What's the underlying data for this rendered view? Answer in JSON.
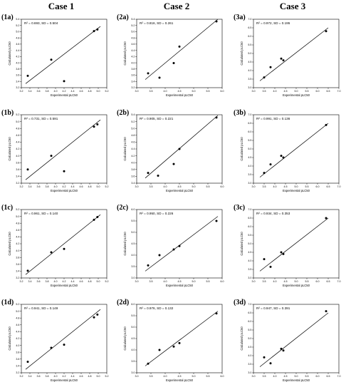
{
  "figure": {
    "case_titles": [
      "Case 1",
      "Case 2",
      "Case 3"
    ],
    "xlabel": "Experimental pLC50",
    "ylabel": "Calculated pLC50"
  },
  "chart_data": [
    {
      "label": "(1a)",
      "type": "scatter",
      "stat": "R² = 0.693, SD = 0.504",
      "xlabel": "Experimental pLC50",
      "ylabel": "Calculated pLC50",
      "xlim": [
        3.2,
        5.2
      ],
      "ylim": [
        3.2,
        5.4
      ],
      "xticks": [
        3.2,
        3.4,
        3.6,
        3.8,
        4.0,
        4.2,
        4.4,
        4.6,
        4.8,
        5.0,
        5.2
      ],
      "yticks": [
        3.2,
        3.4,
        3.6,
        3.8,
        4.0,
        4.2,
        4.4,
        4.6,
        4.8,
        5.0,
        5.2,
        5.4
      ],
      "x": [
        3.35,
        3.9,
        4.2,
        4.9,
        4.98
      ],
      "y": [
        3.58,
        4.1,
        3.41,
        5.02,
        5.07
      ],
      "fit_line": {
        "x": [
          3.3,
          5.05
        ],
        "y": [
          3.33,
          5.17
        ]
      }
    },
    {
      "label": "(2a)",
      "type": "scatter",
      "stat": "R² = 0.816, SD = 0.261",
      "xlabel": "Experimental pLC50",
      "ylabel": "Calculated pLC50",
      "xlim": [
        3.0,
        6.0
      ],
      "ylim": [
        3.2,
        5.4
      ],
      "xticks": [
        3.0,
        3.5,
        4.0,
        4.5,
        5.0,
        5.5,
        6.0
      ],
      "yticks": [
        3.2,
        3.4,
        3.6,
        3.8,
        4.0,
        4.2,
        4.4,
        4.6,
        4.8,
        5.0,
        5.2,
        5.4
      ],
      "x": [
        3.4,
        3.8,
        4.3,
        4.5,
        5.8
      ],
      "y": [
        3.66,
        3.52,
        3.99,
        4.52,
        5.33
      ],
      "fit_line": {
        "x": [
          3.3,
          5.85
        ],
        "y": [
          3.46,
          5.4
        ]
      }
    },
    {
      "label": "(3a)",
      "type": "scatter",
      "stat": "R² = 0.972, SD = 0.195",
      "xlabel": "Experimental pLC50",
      "ylabel": "Calculated pLC50",
      "xlim": [
        3.0,
        7.0
      ],
      "ylim": [
        3.0,
        7.0
      ],
      "xticks": [
        3.0,
        3.5,
        4.0,
        4.5,
        5.0,
        5.5,
        6.0,
        6.5,
        7.0
      ],
      "yticks": [
        3.0,
        3.5,
        4.0,
        4.5,
        5.0,
        5.5,
        6.0,
        6.5,
        7.0
      ],
      "x": [
        3.5,
        3.8,
        4.3,
        4.4,
        6.4
      ],
      "y": [
        3.6,
        4.2,
        4.7,
        4.6,
        6.3
      ],
      "fit_line": {
        "x": [
          3.3,
          6.5
        ],
        "y": [
          3.4,
          6.5
        ]
      }
    },
    {
      "label": "(1b)",
      "type": "scatter",
      "stat": "R² = 0.731, SD = 0.591",
      "xlabel": "Experimental pLC50",
      "ylabel": "Calculated pLC50",
      "xlim": [
        3.2,
        5.2
      ],
      "ylim": [
        3.2,
        5.2
      ],
      "xticks": [
        3.2,
        3.4,
        3.6,
        3.8,
        4.0,
        4.2,
        4.4,
        4.6,
        4.8,
        5.0,
        5.2
      ],
      "yticks": [
        3.2,
        3.4,
        3.6,
        3.8,
        4.0,
        4.2,
        4.4,
        4.6,
        4.8,
        5.0,
        5.2
      ],
      "x": [
        3.35,
        3.9,
        4.2,
        4.9,
        4.98
      ],
      "y": [
        3.6,
        4.0,
        3.55,
        4.85,
        4.92
      ],
      "fit_line": {
        "x": [
          3.3,
          5.05
        ],
        "y": [
          3.3,
          5.05
        ]
      }
    },
    {
      "label": "(2b)",
      "type": "scatter",
      "stat": "R² = 0.905, SD = 0.221",
      "xlabel": "Experimental pLC50",
      "ylabel": "Calculated pLC50",
      "xlim": [
        3.0,
        6.0
      ],
      "ylim": [
        3.4,
        5.4
      ],
      "xticks": [
        3.0,
        3.5,
        4.0,
        4.5,
        5.0,
        5.5,
        6.0
      ],
      "yticks": [
        3.4,
        3.6,
        3.8,
        4.0,
        4.2,
        4.4,
        4.6,
        4.8,
        5.0,
        5.2,
        5.4
      ],
      "x": [
        3.4,
        3.75,
        4.3,
        4.5,
        5.8
      ],
      "y": [
        3.7,
        3.62,
        3.96,
        4.4,
        5.32
      ],
      "fit_line": {
        "x": [
          3.3,
          5.85
        ],
        "y": [
          3.55,
          5.38
        ]
      }
    },
    {
      "label": "(3b)",
      "type": "scatter",
      "stat": "R² = 0.991, SD = 0.136",
      "xlabel": "Experimental pLC50",
      "ylabel": "Calculated pLC50",
      "xlim": [
        3.0,
        7.0
      ],
      "ylim": [
        3.0,
        7.0
      ],
      "xticks": [
        3.0,
        3.5,
        4.0,
        4.5,
        5.0,
        5.5,
        6.0,
        6.5,
        7.0
      ],
      "yticks": [
        3.0,
        3.5,
        4.0,
        4.5,
        5.0,
        5.5,
        6.0,
        6.5,
        7.0
      ],
      "x": [
        3.5,
        3.8,
        4.3,
        4.4,
        6.4
      ],
      "y": [
        3.6,
        4.1,
        4.6,
        4.5,
        6.4
      ],
      "fit_line": {
        "x": [
          3.3,
          6.5
        ],
        "y": [
          3.35,
          6.5
        ]
      }
    },
    {
      "label": "(1c)",
      "type": "scatter",
      "stat": "R² = 0.961, SD = 0.140",
      "xlabel": "Experimental pLC50",
      "ylabel": "Calculated pLC50",
      "xlim": [
        3.2,
        5.2
      ],
      "ylim": [
        3.2,
        5.2
      ],
      "xticks": [
        3.2,
        3.4,
        3.6,
        3.8,
        4.0,
        4.2,
        4.4,
        4.6,
        4.8,
        5.0,
        5.2
      ],
      "yticks": [
        3.2,
        3.4,
        3.6,
        3.8,
        4.0,
        4.2,
        4.4,
        4.6,
        4.8,
        5.0,
        5.2
      ],
      "x": [
        3.35,
        3.9,
        4.2,
        4.9,
        4.98
      ],
      "y": [
        3.41,
        3.95,
        4.05,
        4.9,
        4.98
      ],
      "fit_line": {
        "x": [
          3.3,
          5.05
        ],
        "y": [
          3.3,
          5.05
        ]
      }
    },
    {
      "label": "(2c)",
      "type": "scatter",
      "stat": "R² = 0.950, SD = 0.226",
      "xlabel": "Experimental pLC50",
      "ylabel": "Calculated pLC50",
      "xlim": [
        3.0,
        6.0
      ],
      "ylim": [
        3.0,
        6.0
      ],
      "xticks": [
        3.0,
        3.5,
        4.0,
        4.5,
        5.0,
        5.5,
        6.0
      ],
      "yticks": [
        3.0,
        3.5,
        4.0,
        4.5,
        5.0,
        5.5,
        6.0
      ],
      "x": [
        3.4,
        3.8,
        4.3,
        4.5,
        5.8
      ],
      "y": [
        3.55,
        4.0,
        4.25,
        4.4,
        5.5
      ],
      "fit_line": {
        "x": [
          3.3,
          5.85
        ],
        "y": [
          3.3,
          5.7
        ]
      }
    },
    {
      "label": "(3c)",
      "type": "scatter",
      "stat": "R² = 0.934, SD = 0.353",
      "xlabel": "Experimental pLC50",
      "ylabel": "Calculated pLC50",
      "xlim": [
        3.0,
        7.0
      ],
      "ylim": [
        3.0,
        7.0
      ],
      "xticks": [
        3.0,
        3.5,
        4.0,
        4.5,
        5.0,
        5.5,
        6.0,
        6.5,
        7.0
      ],
      "yticks": [
        3.0,
        3.5,
        4.0,
        4.5,
        5.0,
        5.5,
        6.0,
        6.5,
        7.0
      ],
      "x": [
        3.5,
        3.8,
        4.3,
        4.4,
        6.4
      ],
      "y": [
        4.1,
        3.65,
        4.5,
        4.4,
        6.5
      ],
      "fit_line": {
        "x": [
          3.3,
          6.5
        ],
        "y": [
          3.4,
          6.5
        ]
      }
    },
    {
      "label": "(1d)",
      "type": "scatter",
      "stat": "R² = 0.941, SD = 0.149",
      "xlabel": "Experimental pLC50",
      "ylabel": "Calculated pLC50",
      "xlim": [
        3.2,
        5.2
      ],
      "ylim": [
        3.2,
        5.2
      ],
      "xticks": [
        3.2,
        3.4,
        3.6,
        3.8,
        4.0,
        4.2,
        4.4,
        4.6,
        4.8,
        5.0,
        5.2
      ],
      "yticks": [
        3.2,
        3.4,
        3.6,
        3.8,
        4.0,
        4.2,
        4.4,
        4.6,
        4.8,
        5.0,
        5.2
      ],
      "x": [
        3.35,
        3.9,
        4.2,
        4.9,
        4.98
      ],
      "y": [
        3.52,
        3.93,
        4.02,
        4.82,
        4.9
      ],
      "fit_line": {
        "x": [
          3.3,
          5.05
        ],
        "y": [
          3.3,
          5.05
        ]
      }
    },
    {
      "label": "(2d)",
      "type": "scatter",
      "stat": "R² = 0.976, SD = 0.132",
      "xlabel": "Experimental pLC50",
      "ylabel": "Calculated pLC50",
      "xlim": [
        3.0,
        6.0
      ],
      "ylim": [
        3.0,
        6.0
      ],
      "xticks": [
        3.0,
        3.5,
        4.0,
        4.5,
        5.0,
        5.5,
        6.0
      ],
      "yticks": [
        3.0,
        3.5,
        4.0,
        4.5,
        5.0,
        5.5,
        6.0
      ],
      "x": [
        3.4,
        3.8,
        4.3,
        4.5,
        5.8
      ],
      "y": [
        3.4,
        4.0,
        4.15,
        4.3,
        5.6
      ],
      "fit_line": {
        "x": [
          3.3,
          5.85
        ],
        "y": [
          3.3,
          5.7
        ]
      }
    },
    {
      "label": "(3d)",
      "type": "scatter",
      "stat": "R² = 0.947, SD = 0.391",
      "xlabel": "Experimental pLC50",
      "ylabel": "Calculated pLC50",
      "xlim": [
        3.0,
        7.0
      ],
      "ylim": [
        3.0,
        7.0
      ],
      "xticks": [
        3.0,
        3.5,
        4.0,
        4.5,
        5.0,
        5.5,
        6.0,
        6.5,
        7.0
      ],
      "yticks": [
        3.0,
        3.5,
        4.0,
        4.5,
        5.0,
        5.5,
        6.0,
        6.5,
        7.0
      ],
      "x": [
        3.5,
        3.8,
        4.3,
        4.4,
        6.4
      ],
      "y": [
        3.9,
        3.55,
        4.4,
        4.3,
        6.6
      ],
      "fit_line": {
        "x": [
          3.3,
          6.5
        ],
        "y": [
          3.35,
          6.5
        ]
      }
    }
  ]
}
